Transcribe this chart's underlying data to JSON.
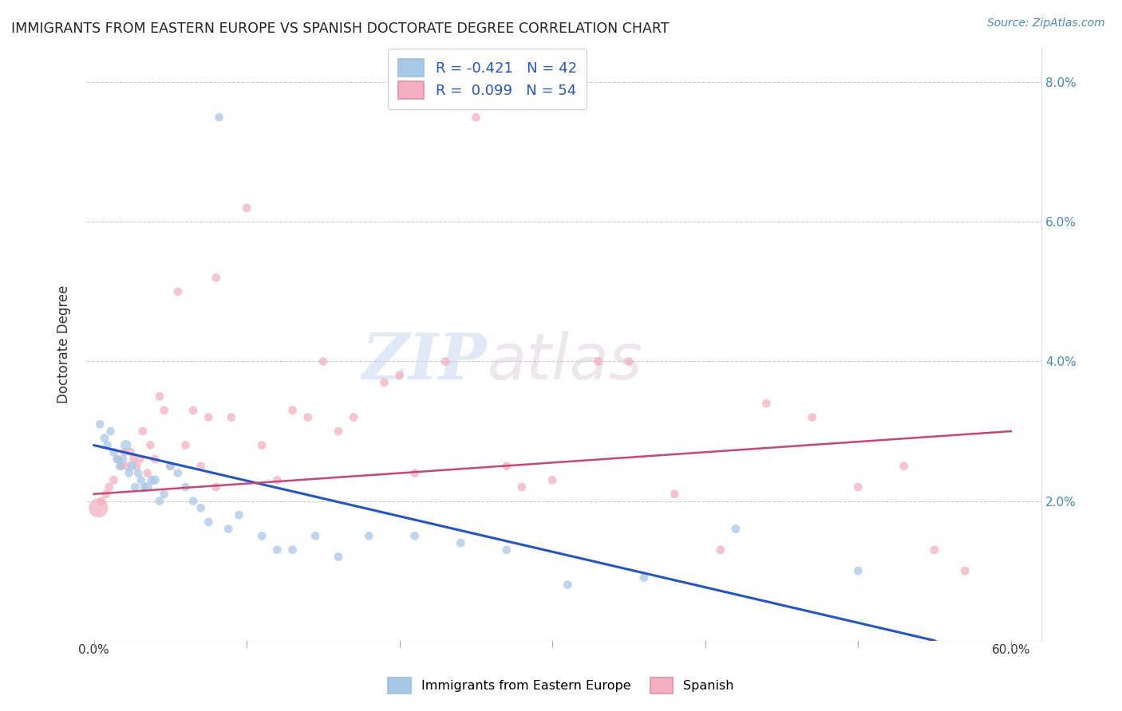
{
  "title": "IMMIGRANTS FROM EASTERN EUROPE VS SPANISH DOCTORATE DEGREE CORRELATION CHART",
  "source": "Source: ZipAtlas.com",
  "ylabel": "Doctorate Degree",
  "y_ticks": [
    0.0,
    0.02,
    0.04,
    0.06,
    0.08
  ],
  "y_tick_labels": [
    "",
    "2.0%",
    "4.0%",
    "6.0%",
    "8.0%"
  ],
  "x_ticks": [
    0.0,
    0.1,
    0.2,
    0.3,
    0.4,
    0.5,
    0.6
  ],
  "legend_line1": "R = -0.421   N = 42",
  "legend_line2": "R =  0.099   N = 54",
  "blue_color": "#a8c8e8",
  "pink_color": "#f4b0c0",
  "blue_line_color": "#2255cc",
  "pink_line_color": "#cc4477",
  "background_color": "#ffffff",
  "blue_points_x": [
    0.004,
    0.007,
    0.009,
    0.011,
    0.013,
    0.015,
    0.017,
    0.019,
    0.021,
    0.023,
    0.025,
    0.027,
    0.029,
    0.031,
    0.033,
    0.035,
    0.038,
    0.04,
    0.043,
    0.046,
    0.05,
    0.055,
    0.06,
    0.065,
    0.07,
    0.075,
    0.082,
    0.088,
    0.095,
    0.11,
    0.12,
    0.13,
    0.145,
    0.16,
    0.18,
    0.21,
    0.24,
    0.27,
    0.31,
    0.36,
    0.42,
    0.5
  ],
  "blue_points_y": [
    0.031,
    0.029,
    0.028,
    0.03,
    0.027,
    0.026,
    0.025,
    0.026,
    0.028,
    0.024,
    0.025,
    0.022,
    0.024,
    0.023,
    0.022,
    0.022,
    0.023,
    0.023,
    0.02,
    0.021,
    0.025,
    0.024,
    0.022,
    0.02,
    0.019,
    0.017,
    0.075,
    0.016,
    0.018,
    0.015,
    0.013,
    0.013,
    0.015,
    0.012,
    0.015,
    0.015,
    0.014,
    0.013,
    0.008,
    0.009,
    0.016,
    0.01
  ],
  "blue_sizes": [
    60,
    60,
    60,
    60,
    60,
    60,
    60,
    60,
    90,
    60,
    70,
    60,
    60,
    60,
    60,
    80,
    70,
    70,
    60,
    60,
    60,
    60,
    60,
    60,
    60,
    60,
    60,
    60,
    60,
    60,
    60,
    60,
    60,
    60,
    60,
    60,
    60,
    60,
    60,
    60,
    60,
    60
  ],
  "pink_points_x": [
    0.003,
    0.005,
    0.008,
    0.01,
    0.013,
    0.016,
    0.018,
    0.02,
    0.022,
    0.024,
    0.026,
    0.028,
    0.03,
    0.032,
    0.035,
    0.037,
    0.04,
    0.043,
    0.046,
    0.05,
    0.055,
    0.06,
    0.065,
    0.07,
    0.075,
    0.08,
    0.09,
    0.1,
    0.11,
    0.12,
    0.13,
    0.14,
    0.16,
    0.17,
    0.19,
    0.21,
    0.23,
    0.25,
    0.27,
    0.3,
    0.33,
    0.35,
    0.38,
    0.41,
    0.44,
    0.47,
    0.5,
    0.53,
    0.55,
    0.57,
    0.08,
    0.15,
    0.2,
    0.28
  ],
  "pink_points_y": [
    0.019,
    0.02,
    0.021,
    0.022,
    0.023,
    0.026,
    0.025,
    0.027,
    0.025,
    0.027,
    0.026,
    0.025,
    0.026,
    0.03,
    0.024,
    0.028,
    0.026,
    0.035,
    0.033,
    0.025,
    0.05,
    0.028,
    0.033,
    0.025,
    0.032,
    0.022,
    0.032,
    0.062,
    0.028,
    0.023,
    0.033,
    0.032,
    0.03,
    0.032,
    0.037,
    0.024,
    0.04,
    0.075,
    0.025,
    0.023,
    0.04,
    0.04,
    0.021,
    0.013,
    0.034,
    0.032,
    0.022,
    0.025,
    0.013,
    0.01,
    0.052,
    0.04,
    0.038,
    0.022
  ],
  "pink_sizes": [
    300,
    60,
    60,
    60,
    60,
    60,
    60,
    60,
    60,
    60,
    60,
    60,
    60,
    60,
    60,
    60,
    60,
    60,
    60,
    60,
    60,
    60,
    60,
    60,
    60,
    60,
    60,
    60,
    60,
    60,
    60,
    60,
    60,
    60,
    60,
    60,
    60,
    60,
    60,
    60,
    60,
    60,
    60,
    60,
    60,
    60,
    60,
    60,
    60,
    60,
    60,
    60,
    60,
    60
  ],
  "blue_trend_x": [
    0.0,
    0.55
  ],
  "blue_trend_y": [
    0.028,
    0.0
  ],
  "pink_trend_x": [
    0.0,
    0.6
  ],
  "pink_trend_y": [
    0.021,
    0.03
  ],
  "watermark_zip": "ZIP",
  "watermark_atlas": "atlas",
  "xlim": [
    -0.005,
    0.62
  ],
  "ylim": [
    0.0,
    0.085
  ]
}
